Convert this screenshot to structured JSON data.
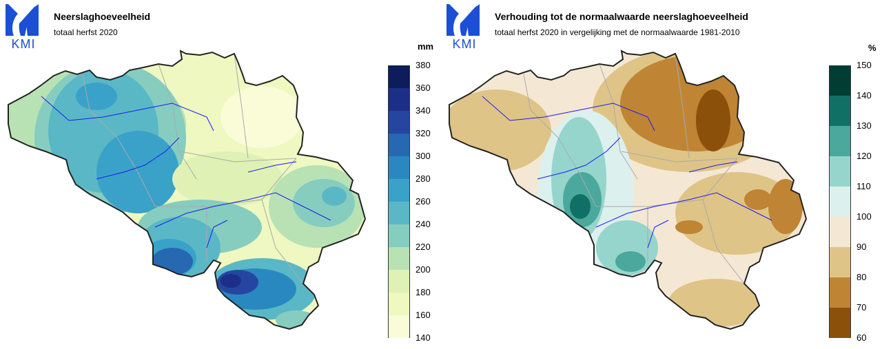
{
  "logo": {
    "text": "KMI",
    "color": "#1a4fd6"
  },
  "panels": [
    {
      "title": "Neerslaghoeveelheid",
      "subtitle": "totaal herfst 2020",
      "unit": "mm",
      "ticks": [
        "380",
        "360",
        "340",
        "320",
        "300",
        "280",
        "260",
        "240",
        "220",
        "200",
        "180",
        "160",
        "140"
      ],
      "colors": [
        "#0c1d5a",
        "#1c2f88",
        "#2545a0",
        "#2668b2",
        "#2988c0",
        "#3aa2c8",
        "#5ab8c6",
        "#86cdc0",
        "#b8e2b4",
        "#dff1b4",
        "#eef8c0",
        "#fafcd8"
      ]
    },
    {
      "title": "Verhouding tot de normaalwaarde neerslaghoeveelheid",
      "subtitle": "totaal herfst 2020 in vergelijking met de normaalwaarde 1981-2010",
      "unit": "%",
      "ticks": [
        "150",
        "140",
        "130",
        "120",
        "110",
        "100",
        "90",
        "80",
        "70",
        "60"
      ],
      "colors": [
        "#013d33",
        "#117065",
        "#4aa89c",
        "#96d5cc",
        "#dcf0ee",
        "#f4e8d4",
        "#dfc487",
        "#bf8534",
        "#8b510a"
      ]
    }
  ]
}
